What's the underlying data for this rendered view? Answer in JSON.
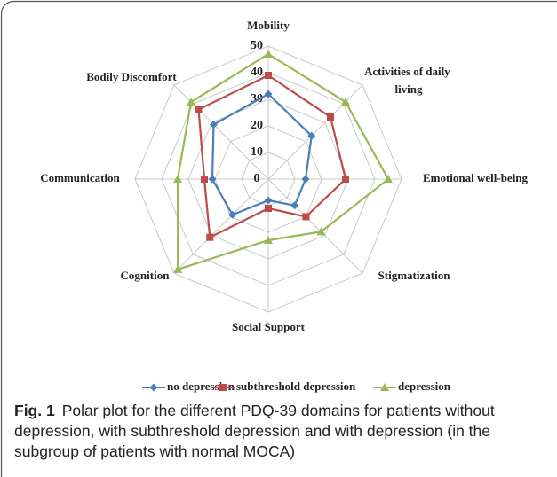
{
  "chart_data": {
    "type": "radar",
    "categories": [
      "Mobility",
      "Activities of daily living",
      "Emotional well-being",
      "Stigmatization",
      "Social Support",
      "Cognition",
      "Communication",
      "Bodily Discomfort"
    ],
    "series": [
      {
        "name": "no depression",
        "color": "#4a7ebb",
        "marker": "diamond",
        "values": [
          32,
          23,
          14,
          14,
          8,
          19,
          21,
          29
        ]
      },
      {
        "name": "subthreshold depression",
        "color": "#be4b48",
        "marker": "square",
        "values": [
          39,
          33,
          29,
          20,
          11,
          31,
          24,
          37
        ]
      },
      {
        "name": "depression",
        "color": "#98b954",
        "marker": "triangle",
        "values": [
          47,
          41,
          45,
          28,
          23,
          48,
          34,
          41
        ]
      }
    ],
    "ylim": [
      0,
      50
    ],
    "yticks": [
      0,
      10,
      20,
      30,
      40,
      50
    ],
    "grid": true,
    "legend": "bottom"
  },
  "caption": {
    "label": "Fig. 1",
    "text": "Polar plot for the different PDQ-39 domains for patients without depression, with subthreshold depression and with depression (in the subgroup of patients with normal MOCA)"
  }
}
